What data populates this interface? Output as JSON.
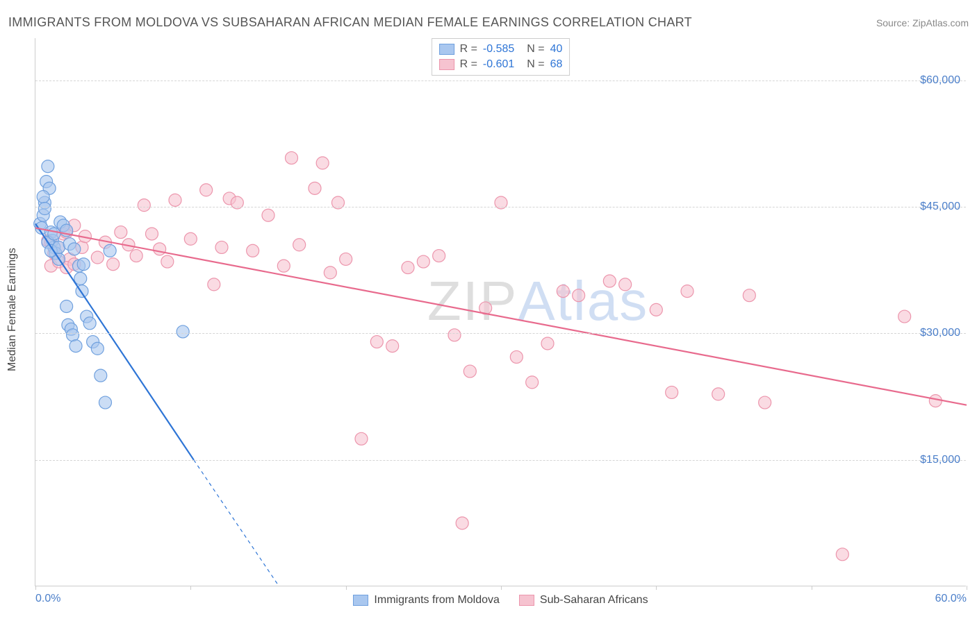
{
  "title": "IMMIGRANTS FROM MOLDOVA VS SUBSAHARAN AFRICAN MEDIAN FEMALE EARNINGS CORRELATION CHART",
  "source": "Source: ZipAtlas.com",
  "watermark": {
    "zip": "ZIP",
    "atlas": "Atlas"
  },
  "chart": {
    "type": "scatter",
    "x_domain": [
      0,
      60
    ],
    "y_domain": [
      0,
      65000
    ],
    "x_ticks": [
      0,
      10,
      20,
      30,
      40,
      50,
      60
    ],
    "x_tick_labels_shown": {
      "0": "0.0%",
      "60": "60.0%"
    },
    "y_gridlines": [
      15000,
      30000,
      45000,
      60000
    ],
    "y_tick_labels": {
      "15000": "$15,000",
      "30000": "$30,000",
      "45000": "$45,000",
      "60000": "$60,000"
    },
    "y_axis_label": "Median Female Earnings",
    "background_color": "#ffffff",
    "grid_color": "#d5d5d5",
    "axis_color": "#cccccc",
    "tick_label_color": "#4a7ec9",
    "axis_text_color": "#444444",
    "marker_radius": 9,
    "marker_stroke_width": 1.2,
    "marker_fill_opacity": 0.25,
    "line_width": 2.2,
    "dash_pattern": "5,5"
  },
  "series": [
    {
      "id": "moldova",
      "label": "Immigrants from Moldova",
      "color_fill": "#a9c7ef",
      "color_stroke": "#6fa0de",
      "line_color": "#2e75d6",
      "R": "-0.585",
      "N": "40",
      "trend": {
        "x1": 0,
        "y1": 43000,
        "x2": 10.2,
        "y2": 15000,
        "dash_extend_x": 15.7,
        "dash_extend_y": 0
      },
      "points": [
        [
          0.3,
          43000
        ],
        [
          0.4,
          42500
        ],
        [
          0.5,
          44000
        ],
        [
          0.6,
          45500
        ],
        [
          0.7,
          48000
        ],
        [
          0.8,
          49800
        ],
        [
          0.9,
          47200
        ],
        [
          1.0,
          42000
        ],
        [
          1.1,
          41000
        ],
        [
          1.2,
          40200
        ],
        [
          1.3,
          39500
        ],
        [
          1.5,
          38800
        ],
        [
          1.6,
          43200
        ],
        [
          1.8,
          42800
        ],
        [
          2.0,
          33200
        ],
        [
          2.1,
          31000
        ],
        [
          2.3,
          30500
        ],
        [
          2.4,
          29800
        ],
        [
          2.6,
          28500
        ],
        [
          2.8,
          38000
        ],
        [
          2.9,
          36500
        ],
        [
          3.0,
          35000
        ],
        [
          3.1,
          38200
        ],
        [
          3.3,
          32000
        ],
        [
          3.5,
          31200
        ],
        [
          3.7,
          29000
        ],
        [
          4.0,
          28200
        ],
        [
          4.2,
          25000
        ],
        [
          4.5,
          21800
        ],
        [
          4.8,
          39800
        ],
        [
          0.5,
          46200
        ],
        [
          0.6,
          44800
        ],
        [
          0.8,
          40800
        ],
        [
          1.0,
          39800
        ],
        [
          1.2,
          41800
        ],
        [
          1.5,
          40200
        ],
        [
          2.2,
          40600
        ],
        [
          9.5,
          30200
        ],
        [
          2.0,
          42200
        ],
        [
          2.5,
          40000
        ]
      ]
    },
    {
      "id": "subsaharan",
      "label": "Sub-Saharan Africans",
      "color_fill": "#f6c3d0",
      "color_stroke": "#ec95ac",
      "line_color": "#e86a8d",
      "R": "-0.601",
      "N": "68",
      "trend": {
        "x1": 0,
        "y1": 42500,
        "x2": 60,
        "y2": 21500
      },
      "points": [
        [
          0.8,
          41000
        ],
        [
          1.0,
          40800
        ],
        [
          1.2,
          39500
        ],
        [
          1.5,
          40200
        ],
        [
          1.8,
          41800
        ],
        [
          2.0,
          42000
        ],
        [
          2.2,
          38800
        ],
        [
          2.5,
          42800
        ],
        [
          3.0,
          40200
        ],
        [
          3.2,
          41500
        ],
        [
          4.0,
          39000
        ],
        [
          4.5,
          40800
        ],
        [
          5.0,
          38200
        ],
        [
          5.5,
          42000
        ],
        [
          6.0,
          40500
        ],
        [
          6.5,
          39200
        ],
        [
          7.0,
          45200
        ],
        [
          7.5,
          41800
        ],
        [
          8.0,
          40000
        ],
        [
          8.5,
          38500
        ],
        [
          9.0,
          45800
        ],
        [
          10.0,
          41200
        ],
        [
          11.0,
          47000
        ],
        [
          11.5,
          35800
        ],
        [
          12.0,
          40200
        ],
        [
          12.5,
          46000
        ],
        [
          13.0,
          45500
        ],
        [
          14.0,
          39800
        ],
        [
          15.0,
          44000
        ],
        [
          16.0,
          38000
        ],
        [
          16.5,
          50800
        ],
        [
          17.0,
          40500
        ],
        [
          18.0,
          47200
        ],
        [
          18.5,
          50200
        ],
        [
          19.0,
          37200
        ],
        [
          19.5,
          45500
        ],
        [
          20.0,
          38800
        ],
        [
          21.0,
          17500
        ],
        [
          22.0,
          29000
        ],
        [
          23.0,
          28500
        ],
        [
          24.0,
          37800
        ],
        [
          25.0,
          38500
        ],
        [
          26.0,
          39200
        ],
        [
          27.0,
          29800
        ],
        [
          27.5,
          7500
        ],
        [
          28.0,
          25500
        ],
        [
          29.0,
          33000
        ],
        [
          30.0,
          45500
        ],
        [
          31.0,
          27200
        ],
        [
          32.0,
          24200
        ],
        [
          33.0,
          28800
        ],
        [
          34.0,
          35000
        ],
        [
          35.0,
          34500
        ],
        [
          37.0,
          36200
        ],
        [
          38.0,
          35800
        ],
        [
          40.0,
          32800
        ],
        [
          41.0,
          23000
        ],
        [
          42.0,
          35000
        ],
        [
          44.0,
          22800
        ],
        [
          46.0,
          34500
        ],
        [
          47.0,
          21800
        ],
        [
          52.0,
          3800
        ],
        [
          56.0,
          32000
        ],
        [
          58.0,
          22000
        ],
        [
          1.0,
          38000
        ],
        [
          1.5,
          38500
        ],
        [
          2.0,
          37800
        ],
        [
          2.5,
          38200
        ]
      ]
    }
  ],
  "legend_top_labels": {
    "R": "R =",
    "N": "N ="
  }
}
